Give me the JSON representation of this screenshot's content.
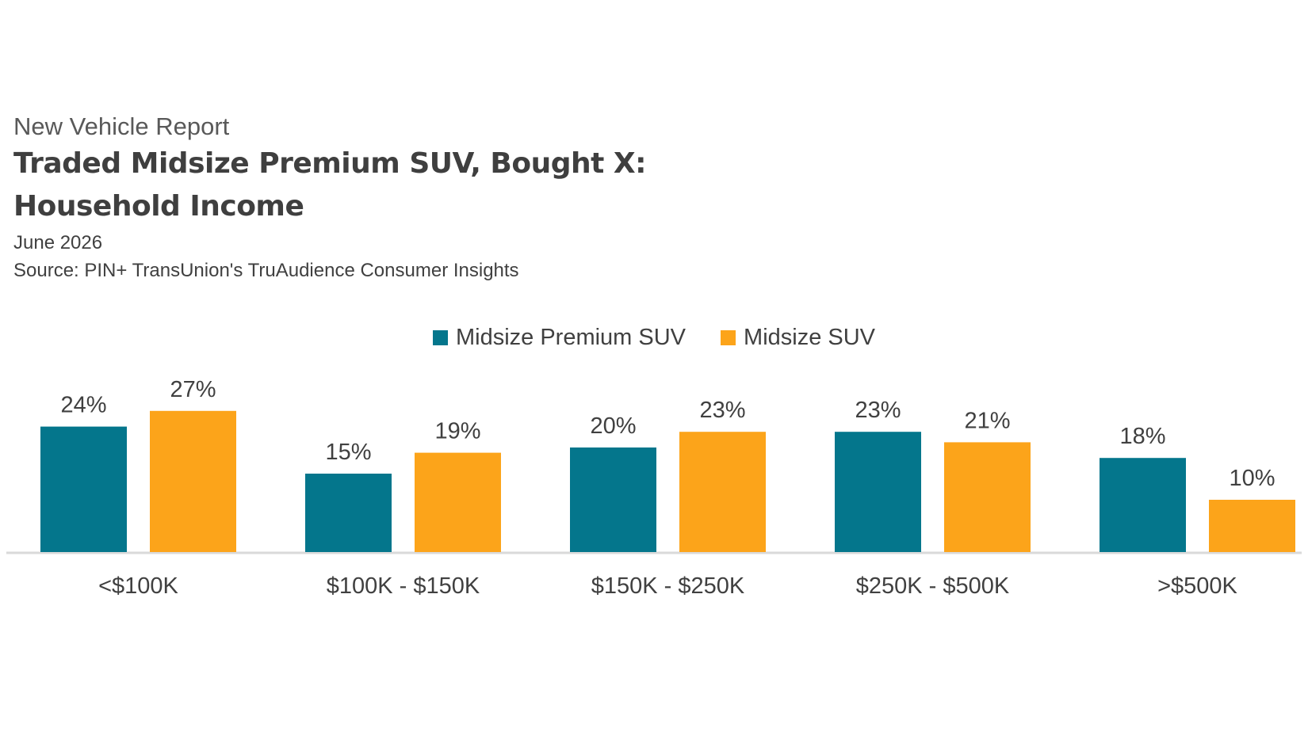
{
  "header": {
    "eyebrow": "New Vehicle Report",
    "title_line1": "Traded Midsize Premium SUV, Bought X:",
    "title_line2": "Household Income",
    "date": "June 2026",
    "source": "Source: PIN+ TransUnion's TruAudience Consumer Insights"
  },
  "chart_data": {
    "type": "bar",
    "title": "Traded Midsize Premium SUV, Bought X: Household Income",
    "subtitle": "June 2026",
    "xlabel": "",
    "ylabel": "",
    "categories": [
      "<$100K",
      "$100K - $150K",
      "$150K - $250K",
      "$250K - $500K",
      ">$500K"
    ],
    "series": [
      {
        "name": "Midsize Premium SUV",
        "values": [
          24,
          15,
          20,
          23,
          18
        ],
        "labels": [
          "24%",
          "15%",
          "20%",
          "23%",
          "18%"
        ],
        "color": "#04768c"
      },
      {
        "name": "Midsize SUV",
        "values": [
          27,
          19,
          23,
          21,
          10
        ],
        "labels": [
          "27%",
          "19%",
          "23%",
          "21%",
          "10%"
        ],
        "color": "#fca41a"
      }
    ],
    "ylim": [
      0,
      30
    ],
    "grid": false,
    "legend": "top-center",
    "axis_color": "#d9d9d9"
  }
}
